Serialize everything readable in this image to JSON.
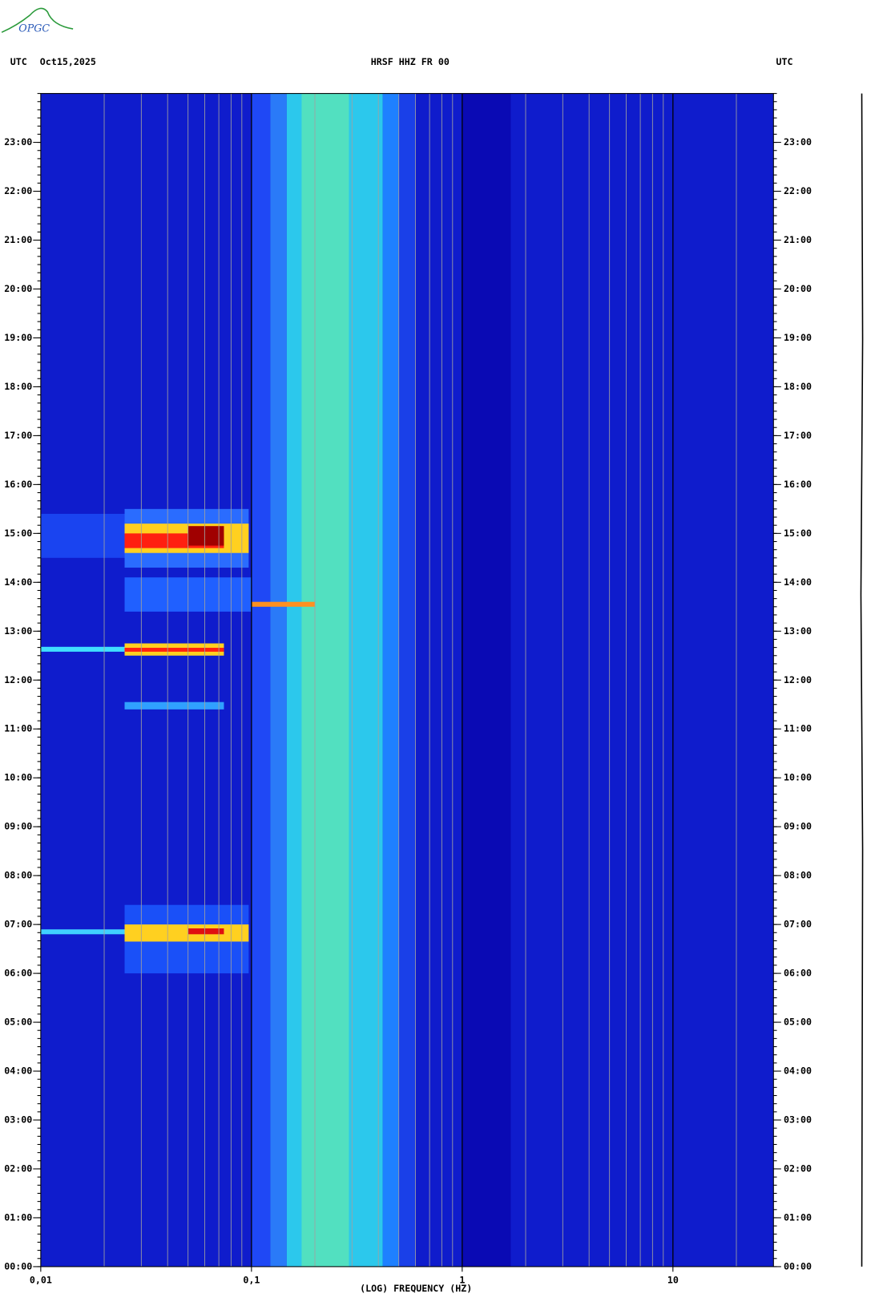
{
  "logo": "OPGC",
  "chart_data": {
    "type": "spectrogram",
    "title": "HRSF HHZ FR 00",
    "time_zone": "UTC",
    "date": "Oct15,2025",
    "right_label": "UTC",
    "x_label": "(LOG) FREQUENCY (HZ)",
    "log_x": true,
    "xlim": [
      0.01,
      30
    ],
    "xticks": [
      {
        "value": 0.01,
        "label": "0,01"
      },
      {
        "value": 0.1,
        "label": "0,1"
      },
      1,
      10
    ],
    "xgrid": [
      0.02,
      0.03,
      0.04,
      0.05,
      0.06,
      0.07,
      0.08,
      0.09,
      0.1,
      0.2,
      0.3,
      0.4,
      0.5,
      0.6,
      0.7,
      0.8,
      0.9,
      1,
      2,
      3,
      4,
      5,
      6,
      7,
      8,
      9,
      10,
      20
    ],
    "ylim": [
      0,
      24
    ],
    "yticks": [
      {
        "value": 0,
        "label": "00:00"
      },
      {
        "value": 1,
        "label": "01:00"
      },
      {
        "value": 2,
        "label": "02:00"
      },
      {
        "value": 3,
        "label": "03:00"
      },
      {
        "value": 4,
        "label": "04:00"
      },
      {
        "value": 5,
        "label": "05:00"
      },
      {
        "value": 6,
        "label": "06:00"
      },
      {
        "value": 7,
        "label": "07:00"
      },
      {
        "value": 8,
        "label": "08:00"
      },
      {
        "value": 9,
        "label": "09:00"
      },
      {
        "value": 10,
        "label": "10:00"
      },
      {
        "value": 11,
        "label": "11:00"
      },
      {
        "value": 12,
        "label": "12:00"
      },
      {
        "value": 13,
        "label": "13:00"
      },
      {
        "value": 14,
        "label": "14:00"
      },
      {
        "value": 15,
        "label": "15:00"
      },
      {
        "value": 16,
        "label": "16:00"
      },
      {
        "value": 17,
        "label": "17:00"
      },
      {
        "value": 18,
        "label": "18:00"
      },
      {
        "value": 19,
        "label": "19:00"
      },
      {
        "value": 20,
        "label": "20:00"
      },
      {
        "value": 21,
        "label": "21:00"
      },
      {
        "value": 22,
        "label": "22:00"
      },
      {
        "value": 23,
        "label": "23:00"
      }
    ],
    "background": "#0f1ccc",
    "regions": [
      {
        "x": [
          0.1,
          0.123
        ],
        "y": [
          0,
          24
        ],
        "color": "#1f48f5"
      },
      {
        "x": [
          0.123,
          0.147
        ],
        "y": [
          0,
          24
        ],
        "color": "#2a7af8"
      },
      {
        "x": [
          0.147,
          0.42
        ],
        "y": [
          0,
          24
        ],
        "color": "#2cc8ec"
      },
      {
        "x": [
          0.173,
          0.29
        ],
        "y": [
          0,
          24
        ],
        "color": "#52e0c0"
      },
      {
        "x": [
          0.42,
          0.5
        ],
        "y": [
          0,
          24
        ],
        "color": "#1e80ff"
      },
      {
        "x": [
          0.5,
          0.6
        ],
        "y": [
          0,
          24
        ],
        "color": "#1a40e8"
      },
      {
        "x": [
          1,
          1.7
        ],
        "y": [
          0,
          24
        ],
        "color": "#0a0ab4"
      },
      {
        "x": [
          0.01,
          0.025
        ],
        "y": [
          14.5,
          15.4
        ],
        "color": "#1a44f0"
      },
      {
        "x": [
          0.025,
          0.097
        ],
        "y": [
          14.3,
          15.5
        ],
        "color": "#2a6cff"
      },
      {
        "x": [
          0.025,
          0.097
        ],
        "y": [
          14.6,
          15.2
        ],
        "color": "#ffd020"
      },
      {
        "x": [
          0.025,
          0.074
        ],
        "y": [
          14.7,
          15.0
        ],
        "color": "#ff2010"
      },
      {
        "x": [
          0.05,
          0.074
        ],
        "y": [
          14.75,
          15.15
        ],
        "color": "#a00000"
      },
      {
        "x": [
          0.025,
          0.1
        ],
        "y": [
          13.4,
          14.1
        ],
        "color": "#2060ff"
      },
      {
        "x": [
          0.1,
          0.2
        ],
        "y": [
          13.5,
          13.6
        ],
        "color": "#ff9020"
      },
      {
        "x": [
          0.01,
          0.025
        ],
        "y": [
          12.58,
          12.68
        ],
        "color": "#40e0ff"
      },
      {
        "x": [
          0.025,
          0.074
        ],
        "y": [
          12.5,
          12.75
        ],
        "color": "#ffd020"
      },
      {
        "x": [
          0.025,
          0.074
        ],
        "y": [
          12.58,
          12.66
        ],
        "color": "#ff2010"
      },
      {
        "x": [
          0.025,
          0.074
        ],
        "y": [
          11.4,
          11.55
        ],
        "color": "#30a0ff"
      },
      {
        "x": [
          0.025,
          0.097
        ],
        "y": [
          6.0,
          7.4
        ],
        "color": "#1a50f8"
      },
      {
        "x": [
          0.01,
          0.025
        ],
        "y": [
          6.8,
          6.9
        ],
        "color": "#40d0ff"
      },
      {
        "x": [
          0.025,
          0.097
        ],
        "y": [
          6.65,
          7.0
        ],
        "color": "#ffd020"
      },
      {
        "x": [
          0.05,
          0.074
        ],
        "y": [
          6.8,
          6.92
        ],
        "color": "#e01010"
      }
    ]
  }
}
